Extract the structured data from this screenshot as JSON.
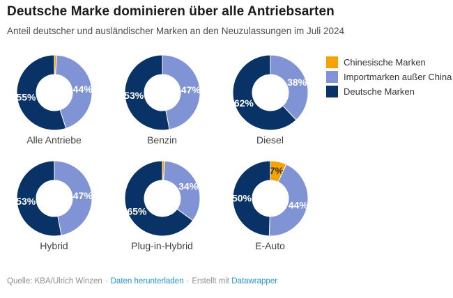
{
  "header": {
    "title": "Deutsche Marke dominieren über alle Antriebsarten",
    "subtitle": "Anteil deutscher und ausländischer Marken an den Neuzulassungen im Juli 2024"
  },
  "legend": {
    "items": [
      {
        "label": "Chinesische Marken",
        "color": "#f6a200"
      },
      {
        "label": "Importmarken außer China",
        "color": "#8094d5"
      },
      {
        "label": "Deutsche Marken",
        "color": "#093266"
      }
    ]
  },
  "chart_data": {
    "type": "pie",
    "subtype": "donut-small-multiples",
    "series_labels": [
      "Chinesische Marken",
      "Importmarken außer China",
      "Deutsche Marken"
    ],
    "colors": [
      "#f6a200",
      "#8094d5",
      "#093266"
    ],
    "label_colors": [
      "#333333",
      "#ffffff",
      "#ffffff"
    ],
    "unit": "%",
    "charts": [
      {
        "category": "Alle Antriebe",
        "values": [
          1,
          44,
          55
        ],
        "labels": [
          "",
          "44%",
          "55%"
        ]
      },
      {
        "category": "Benzin",
        "values": [
          0,
          47,
          53
        ],
        "labels": [
          "",
          "47%",
          "53%"
        ]
      },
      {
        "category": "Diesel",
        "values": [
          0,
          38,
          62
        ],
        "labels": [
          "",
          "38%",
          "62%"
        ]
      },
      {
        "category": "Hybrid",
        "values": [
          0,
          47,
          53
        ],
        "labels": [
          "",
          "47%",
          "53%"
        ]
      },
      {
        "category": "Plug-in-Hybrid",
        "values": [
          1,
          34,
          65
        ],
        "labels": [
          "",
          "34%",
          "65%"
        ]
      },
      {
        "category": "E-Auto",
        "values": [
          7,
          44,
          50
        ],
        "labels": [
          "7%",
          "44%",
          "50%"
        ]
      }
    ]
  },
  "footer": {
    "source_label": "Quelle: KBA/Ulrich Winzen",
    "separator": "·",
    "download_link": "Daten herunterladen",
    "created_with": "Erstellt mit",
    "tool_link": "Datawrapper"
  }
}
